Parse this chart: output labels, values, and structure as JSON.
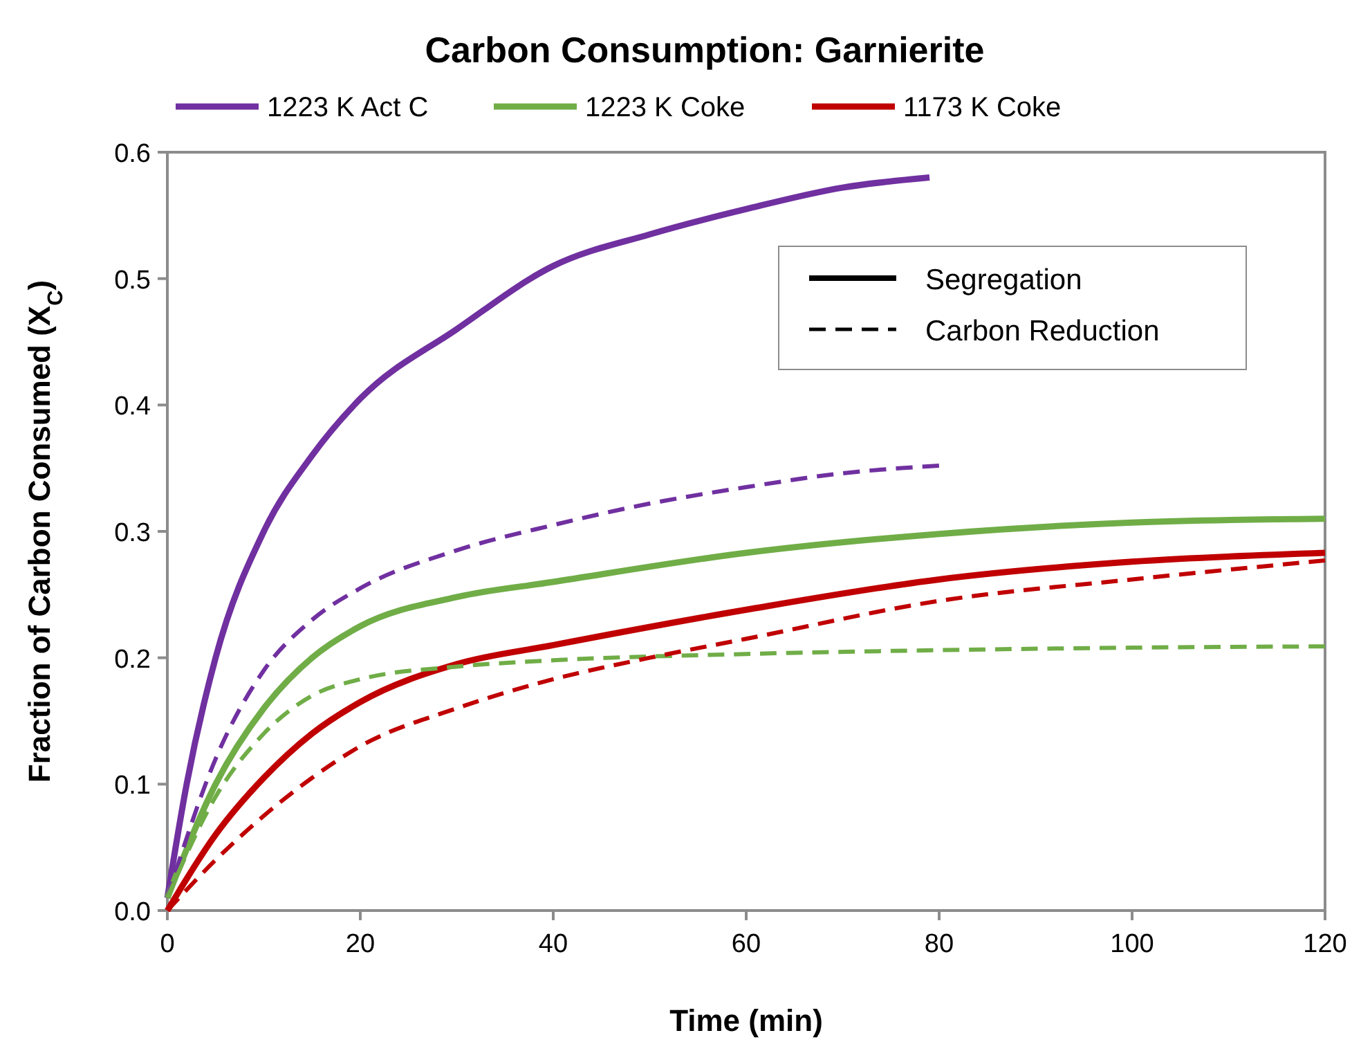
{
  "chart_data": {
    "type": "line",
    "title": "Carbon Consumption: Garnierite",
    "xlabel": "Time (min)",
    "ylabel": "Fraction of Carbon Consumed (X$_{C}$)",
    "xlim": [
      0,
      120
    ],
    "xticks": [
      0,
      20,
      40,
      60,
      80,
      100,
      120
    ],
    "ylim": [
      0,
      0.6
    ],
    "yticks": [
      {
        "value": 0,
        "label": "0.0"
      },
      0.1,
      0.2,
      0.3,
      0.4,
      0.5,
      0.6
    ],
    "grid": false,
    "legend": "top",
    "annotations": [
      "Segregation",
      "Carbon Reduction"
    ],
    "series": [
      {
        "name": "1223 K Act C",
        "color": "#7030a0",
        "line_style": "solid",
        "x": [
          0,
          2,
          5,
          10,
          15,
          20,
          30,
          40,
          50,
          60,
          70,
          79
        ],
        "values": [
          0.01,
          0.1,
          0.2,
          0.3,
          0.36,
          0.405,
          0.46,
          0.51,
          0.535,
          0.555,
          0.572,
          0.58
        ]
      },
      {
        "name": "1223 K Coke",
        "color": "#70ad47",
        "line_style": "solid",
        "x": [
          0,
          5,
          10,
          15,
          20,
          30,
          40,
          60,
          80,
          100,
          120
        ],
        "values": [
          0.01,
          0.1,
          0.16,
          0.2,
          0.225,
          0.248,
          0.26,
          0.283,
          0.298,
          0.307,
          0.31
        ]
      },
      {
        "name": "1173 K Coke",
        "color": "#c00000",
        "line_style": "solid",
        "x": [
          0,
          5,
          10,
          15,
          20,
          30,
          40,
          60,
          80,
          100,
          120
        ],
        "values": [
          0,
          0.06,
          0.105,
          0.14,
          0.165,
          0.195,
          0.21,
          0.238,
          0.262,
          0.276,
          0.283
        ]
      },
      {
        "color": "#7030a0",
        "line_style": "dashed",
        "x": [
          0,
          5,
          10,
          15,
          20,
          30,
          40,
          50,
          60,
          70,
          80
        ],
        "values": [
          0.01,
          0.12,
          0.19,
          0.23,
          0.255,
          0.285,
          0.305,
          0.322,
          0.335,
          0.346,
          0.352
        ]
      },
      {
        "color": "#70ad47",
        "line_style": "dashed",
        "x": [
          0,
          5,
          10,
          15,
          20,
          30,
          40,
          60,
          80,
          100,
          120
        ],
        "values": [
          0.01,
          0.09,
          0.14,
          0.17,
          0.183,
          0.193,
          0.198,
          0.203,
          0.206,
          0.208,
          0.209
        ]
      },
      {
        "color": "#c00000",
        "line_style": "dashed",
        "x": [
          0,
          5,
          10,
          15,
          20,
          30,
          40,
          50,
          60,
          80,
          100,
          120
        ],
        "values": [
          0,
          0.04,
          0.075,
          0.105,
          0.13,
          0.16,
          0.183,
          0.2,
          0.215,
          0.245,
          0.262,
          0.277
        ]
      }
    ]
  }
}
